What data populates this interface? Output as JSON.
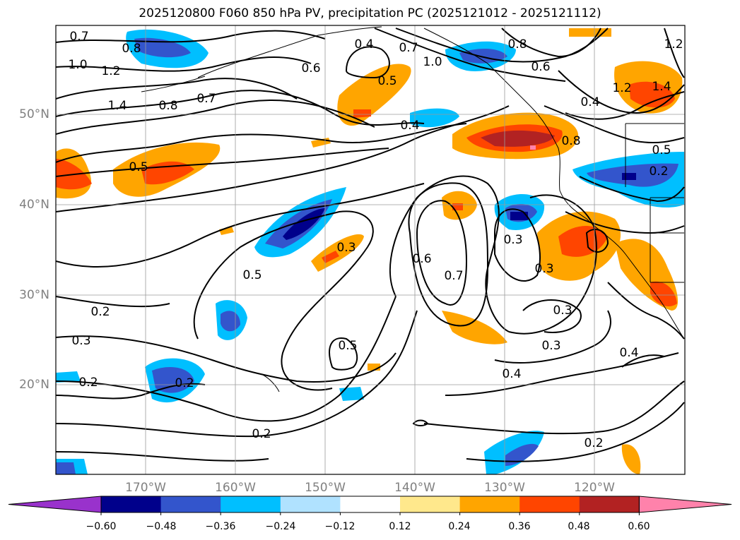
{
  "title": "2025120800 F060 850 hPa PV, precipitation PC (2025121012 - 2025121112)",
  "map": {
    "lon_labels": [
      "170°W",
      "160°W",
      "150°W",
      "140°W",
      "130°W",
      "120°W"
    ],
    "lat_labels": [
      "50°N",
      "40°N",
      "30°N",
      "20°N"
    ],
    "contour_labels": [
      "0.7",
      "0.8",
      "1.0",
      "1.2",
      "1.4",
      "0.8",
      "0.7",
      "0.5",
      "0.4",
      "0.6",
      "0.7",
      "1.0",
      "0.8",
      "0.6",
      "0.4",
      "0.5",
      "1.2",
      "1.4",
      "1.2",
      "0.5",
      "0.4",
      "0.3",
      "0.5",
      "0.6",
      "0.7",
      "0.2",
      "0.3",
      "0.5",
      "0.3",
      "0.2",
      "0.3",
      "0.2",
      "0.2",
      "0.3",
      "0.3",
      "0.4",
      "0.4",
      "0.2",
      "0.2",
      "0.8"
    ]
  },
  "colorbar": {
    "labels": [
      "−0.60",
      "−0.48",
      "−0.36",
      "−0.24",
      "−0.12",
      "0.12",
      "0.24",
      "0.36",
      "0.48",
      "0.60"
    ],
    "colors": [
      "#9932cc",
      "#00008b",
      "#3355cc",
      "#00bfff",
      "#b0e2ff",
      "#ffffff",
      "#ffe88c",
      "#ffa500",
      "#ff4500",
      "#b22222",
      "#ff82ab"
    ]
  }
}
